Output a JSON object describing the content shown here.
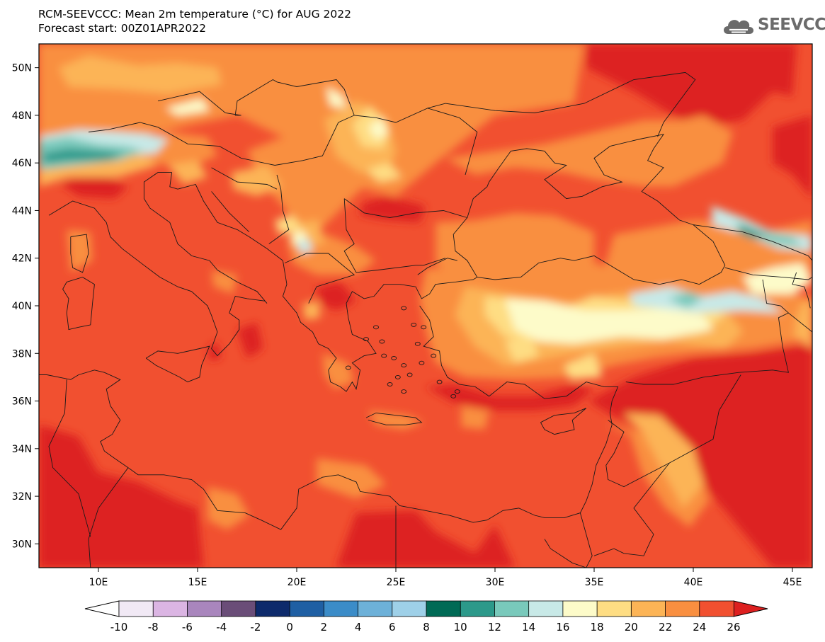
{
  "header": {
    "title": "RCM-SEEVCCC: Mean 2m temperature (°C) for AUG 2022",
    "subtitle": "Forecast start: 00Z01APR2022"
  },
  "logo": {
    "text": "SEEVCCC",
    "icon": "cloud-logo-icon"
  },
  "map": {
    "lon_range": [
      7,
      46
    ],
    "lat_range": [
      29,
      51
    ],
    "lon_ticks": [
      {
        "value": 10,
        "label": "10E"
      },
      {
        "value": 15,
        "label": "15E"
      },
      {
        "value": 20,
        "label": "20E"
      },
      {
        "value": 25,
        "label": "25E"
      },
      {
        "value": 30,
        "label": "30E"
      },
      {
        "value": 35,
        "label": "35E"
      },
      {
        "value": 40,
        "label": "40E"
      },
      {
        "value": 45,
        "label": "45E"
      }
    ],
    "lat_ticks": [
      {
        "value": 30,
        "label": "30N"
      },
      {
        "value": 32,
        "label": "32N"
      },
      {
        "value": 34,
        "label": "34N"
      },
      {
        "value": 36,
        "label": "36N"
      },
      {
        "value": 38,
        "label": "38N"
      },
      {
        "value": 40,
        "label": "40N"
      },
      {
        "value": 42,
        "label": "42N"
      },
      {
        "value": 44,
        "label": "44N"
      },
      {
        "value": 46,
        "label": "46N"
      },
      {
        "value": 48,
        "label": "48N"
      },
      {
        "value": 50,
        "label": "50N"
      }
    ],
    "background_color": "#f15030"
  },
  "colorbar": {
    "labels": [
      "-10",
      "-8",
      "-6",
      "-4",
      "-2",
      "0",
      "2",
      "4",
      "6",
      "8",
      "10",
      "12",
      "14",
      "16",
      "18",
      "20",
      "22",
      "24",
      "26"
    ],
    "low_end_color": "#ffffff",
    "colors": [
      "#f1e9f5",
      "#dbb5e3",
      "#a986bd",
      "#6a4d78",
      "#0d2a6b",
      "#1f5fa3",
      "#3b8cc8",
      "#6db1d9",
      "#9ed0e8",
      "#006a55",
      "#2c998a",
      "#79c9bb",
      "#c8e9e7",
      "#fdfbc9",
      "#fedd83",
      "#fcb456",
      "#f98f40",
      "#f15030"
    ],
    "high_end_color": "#dd2020"
  },
  "fields": {
    "hot": "#dd2020",
    "warm24": "#f15030",
    "warm22": "#f98f40",
    "mild20": "#fcb456",
    "mild18": "#fedd83",
    "cool16": "#fdfbc9",
    "cool14": "#c8e9e7",
    "cool12": "#79c9bb",
    "cool10": "#2c998a"
  }
}
